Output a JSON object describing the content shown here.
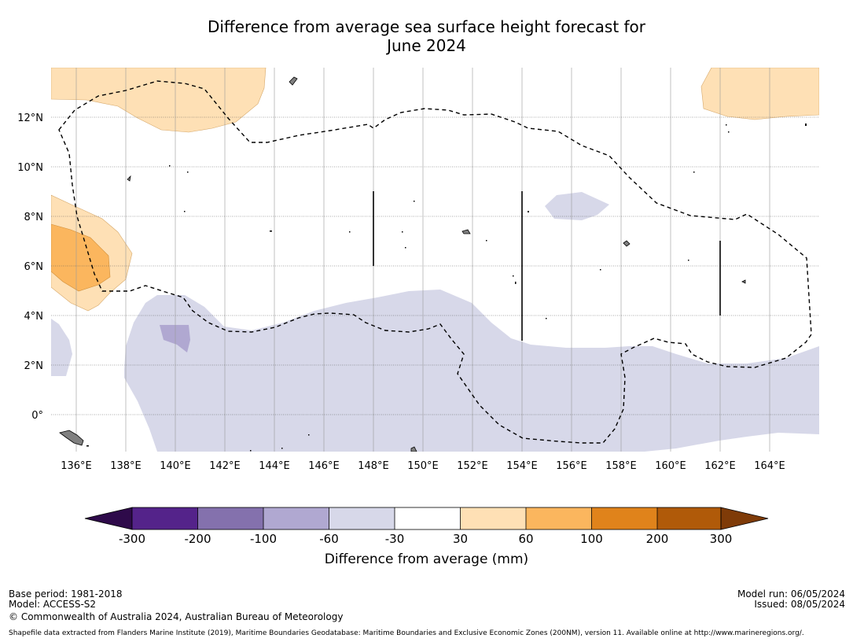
{
  "title_line1": "Difference from average sea surface height forecast for",
  "title_line2": "June 2024",
  "map": {
    "lon_labels": [
      "136°E",
      "138°E",
      "140°E",
      "142°E",
      "144°E",
      "146°E",
      "148°E",
      "150°E",
      "152°E",
      "154°E",
      "156°E",
      "158°E",
      "160°E",
      "162°E",
      "164°E"
    ],
    "lat_labels": [
      "12°N",
      "10°N",
      "8°N",
      "6°N",
      "4°N",
      "2°N",
      "0°"
    ],
    "lon_range": [
      135.0,
      166.0
    ],
    "lat_range": [
      -1.5,
      14.0
    ]
  },
  "colorbar": {
    "title": "Difference from average (mm)",
    "tick_labels": [
      "-300",
      "-200",
      "-100",
      "-60",
      "-30",
      "30",
      "60",
      "100",
      "200",
      "300"
    ],
    "colors": {
      "below": "#2e0a4a",
      "bins": [
        "#54238a",
        "#8471ad",
        "#b0a8d1",
        "#d7d8e9",
        "#ffffff",
        "#fee0b5",
        "#fbb65e",
        "#e0831b",
        "#b05a09"
      ],
      "above": "#7f3b08"
    }
  },
  "footer": {
    "base_period": "Base period: 1981-2018",
    "model": "Model: ACCESS-S2",
    "copyright": "© Commonwealth of Australia 2024, Australian Bureau of Meteorology",
    "model_run": "Model run: 06/05/2024",
    "issued": "Issued: 08/05/2024",
    "shapefile_note": "Shapefile data extracted from Flanders Marine Institute (2019), Maritime Boundaries Geodatabase: Maritime Boundaries and Exclusive Economic Zones (200NM), version 11. Available online at http://www.marineregions.org/."
  }
}
